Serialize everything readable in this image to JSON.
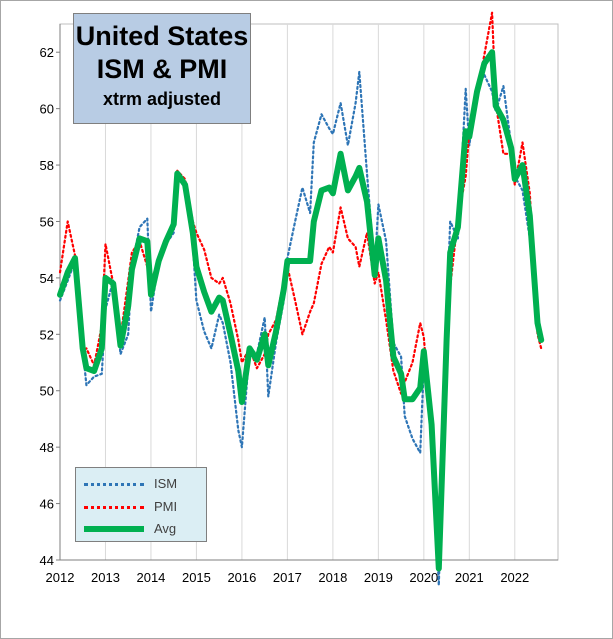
{
  "title": {
    "line1": "United States",
    "line2": "ISM & PMI",
    "subtitle": "xtrm adjusted"
  },
  "legend": {
    "ism": "ISM",
    "pmi": "PMI",
    "avg": "Avg"
  },
  "colors": {
    "ism": "#2e75b6",
    "pmi": "#ff0000",
    "avg": "#00b050"
  },
  "chart_data": {
    "type": "line",
    "title": "United States ISM & PMI xtrm adjusted",
    "xlabel": "",
    "ylabel": "",
    "xlim": [
      2012,
      2022.95
    ],
    "ylim": [
      44,
      63
    ],
    "x_ticks": [
      2012,
      2013,
      2014,
      2015,
      2016,
      2017,
      2018,
      2019,
      2020,
      2021,
      2022
    ],
    "y_ticks": [
      44,
      46,
      48,
      50,
      52,
      54,
      56,
      58,
      60,
      62
    ],
    "grid": "vertical",
    "legend_position": "bottom-left",
    "series": [
      {
        "name": "ISM",
        "style": "dotted",
        "points": [
          [
            2012.0,
            53.2
          ],
          [
            2012.17,
            53.9
          ],
          [
            2012.33,
            54.6
          ],
          [
            2012.5,
            51.5
          ],
          [
            2012.58,
            50.2
          ],
          [
            2012.75,
            50.5
          ],
          [
            2012.92,
            50.6
          ],
          [
            2013.0,
            52.9
          ],
          [
            2013.17,
            53.9
          ],
          [
            2013.33,
            51.3
          ],
          [
            2013.5,
            52.0
          ],
          [
            2013.58,
            54.4
          ],
          [
            2013.75,
            55.8
          ],
          [
            2013.92,
            56.1
          ],
          [
            2014.0,
            52.8
          ],
          [
            2014.17,
            54.6
          ],
          [
            2014.33,
            55.2
          ],
          [
            2014.5,
            55.6
          ],
          [
            2014.58,
            57.6
          ],
          [
            2014.75,
            57.4
          ],
          [
            2014.92,
            55.2
          ],
          [
            2015.0,
            53.2
          ],
          [
            2015.17,
            52.1
          ],
          [
            2015.33,
            51.5
          ],
          [
            2015.5,
            52.7
          ],
          [
            2015.58,
            52.4
          ],
          [
            2015.75,
            51.0
          ],
          [
            2015.92,
            48.6
          ],
          [
            2016.0,
            48.0
          ],
          [
            2016.17,
            51.5
          ],
          [
            2016.33,
            51.3
          ],
          [
            2016.5,
            52.6
          ],
          [
            2016.58,
            49.8
          ],
          [
            2016.75,
            51.7
          ],
          [
            2016.92,
            53.2
          ],
          [
            2017.0,
            54.7
          ],
          [
            2017.17,
            56.0
          ],
          [
            2017.33,
            57.2
          ],
          [
            2017.5,
            56.3
          ],
          [
            2017.58,
            58.8
          ],
          [
            2017.75,
            59.8
          ],
          [
            2017.92,
            59.3
          ],
          [
            2018.0,
            59.1
          ],
          [
            2018.17,
            60.2
          ],
          [
            2018.33,
            58.7
          ],
          [
            2018.5,
            60.2
          ],
          [
            2018.58,
            61.3
          ],
          [
            2018.75,
            57.7
          ],
          [
            2018.92,
            54.3
          ],
          [
            2019.0,
            56.6
          ],
          [
            2019.17,
            55.3
          ],
          [
            2019.33,
            51.7
          ],
          [
            2019.5,
            51.2
          ],
          [
            2019.58,
            49.1
          ],
          [
            2019.75,
            48.3
          ],
          [
            2019.92,
            47.8
          ],
          [
            2020.0,
            50.9
          ],
          [
            2020.17,
            49.1
          ],
          [
            2020.33,
            43.1
          ],
          [
            2020.5,
            52.6
          ],
          [
            2020.58,
            56.0
          ],
          [
            2020.75,
            55.4
          ],
          [
            2020.92,
            60.7
          ],
          [
            2021.0,
            58.7
          ],
          [
            2021.17,
            60.7
          ],
          [
            2021.33,
            61.2
          ],
          [
            2021.5,
            60.6
          ],
          [
            2021.58,
            59.9
          ],
          [
            2021.75,
            60.8
          ],
          [
            2021.92,
            58.7
          ],
          [
            2022.0,
            57.6
          ],
          [
            2022.17,
            57.1
          ],
          [
            2022.33,
            55.4
          ],
          [
            2022.5,
            52.8
          ],
          [
            2022.58,
            52.0
          ]
        ]
      },
      {
        "name": "PMI",
        "style": "dotted",
        "points": [
          [
            2012.0,
            54.2
          ],
          [
            2012.17,
            56.0
          ],
          [
            2012.33,
            54.8
          ],
          [
            2012.5,
            51.4
          ],
          [
            2012.58,
            51.5
          ],
          [
            2012.75,
            50.9
          ],
          [
            2012.92,
            52.3
          ],
          [
            2013.0,
            55.2
          ],
          [
            2013.17,
            53.8
          ],
          [
            2013.33,
            51.9
          ],
          [
            2013.5,
            53.9
          ],
          [
            2013.58,
            54.9
          ],
          [
            2013.75,
            55.3
          ],
          [
            2013.92,
            54.4
          ],
          [
            2014.0,
            53.9
          ],
          [
            2014.17,
            54.6
          ],
          [
            2014.33,
            55.3
          ],
          [
            2014.5,
            56.1
          ],
          [
            2014.58,
            57.8
          ],
          [
            2014.75,
            57.5
          ],
          [
            2014.92,
            56.0
          ],
          [
            2015.0,
            55.6
          ],
          [
            2015.17,
            55.0
          ],
          [
            2015.33,
            54.0
          ],
          [
            2015.5,
            53.8
          ],
          [
            2015.58,
            54.0
          ],
          [
            2015.75,
            53.1
          ],
          [
            2015.92,
            51.8
          ],
          [
            2016.0,
            51.0
          ],
          [
            2016.17,
            51.5
          ],
          [
            2016.33,
            50.8
          ],
          [
            2016.5,
            51.3
          ],
          [
            2016.58,
            52.0
          ],
          [
            2016.75,
            52.5
          ],
          [
            2016.92,
            53.9
          ],
          [
            2017.0,
            54.4
          ],
          [
            2017.17,
            53.2
          ],
          [
            2017.33,
            52.0
          ],
          [
            2017.5,
            52.8
          ],
          [
            2017.58,
            53.1
          ],
          [
            2017.75,
            54.5
          ],
          [
            2017.92,
            55.1
          ],
          [
            2018.0,
            54.9
          ],
          [
            2018.17,
            56.5
          ],
          [
            2018.33,
            55.4
          ],
          [
            2018.5,
            55.1
          ],
          [
            2018.58,
            54.4
          ],
          [
            2018.75,
            55.6
          ],
          [
            2018.92,
            53.8
          ],
          [
            2019.0,
            54.2
          ],
          [
            2019.17,
            52.5
          ],
          [
            2019.33,
            50.7
          ],
          [
            2019.5,
            49.9
          ],
          [
            2019.58,
            50.3
          ],
          [
            2019.75,
            51.0
          ],
          [
            2019.92,
            52.4
          ],
          [
            2020.0,
            51.9
          ],
          [
            2020.17,
            48.5
          ],
          [
            2020.33,
            44.3
          ],
          [
            2020.5,
            50.9
          ],
          [
            2020.58,
            53.7
          ],
          [
            2020.75,
            56.1
          ],
          [
            2020.92,
            57.6
          ],
          [
            2021.0,
            59.2
          ],
          [
            2021.17,
            60.5
          ],
          [
            2021.33,
            61.9
          ],
          [
            2021.5,
            63.4
          ],
          [
            2021.58,
            60.2
          ],
          [
            2021.75,
            58.4
          ],
          [
            2021.92,
            58.4
          ],
          [
            2022.0,
            57.3
          ],
          [
            2022.17,
            58.8
          ],
          [
            2022.33,
            57.0
          ],
          [
            2022.5,
            52.0
          ],
          [
            2022.58,
            51.5
          ]
        ]
      },
      {
        "name": "Avg",
        "style": "solid-thick",
        "points": [
          [
            2012.0,
            53.4
          ],
          [
            2012.17,
            54.2
          ],
          [
            2012.33,
            54.7
          ],
          [
            2012.5,
            51.5
          ],
          [
            2012.58,
            50.8
          ],
          [
            2012.75,
            50.7
          ],
          [
            2012.92,
            51.5
          ],
          [
            2013.0,
            54.0
          ],
          [
            2013.17,
            53.8
          ],
          [
            2013.33,
            51.6
          ],
          [
            2013.5,
            53.0
          ],
          [
            2013.58,
            54.3
          ],
          [
            2013.75,
            55.4
          ],
          [
            2013.92,
            55.3
          ],
          [
            2014.0,
            53.4
          ],
          [
            2014.17,
            54.6
          ],
          [
            2014.33,
            55.3
          ],
          [
            2014.5,
            55.9
          ],
          [
            2014.58,
            57.7
          ],
          [
            2014.75,
            57.3
          ],
          [
            2014.92,
            55.6
          ],
          [
            2015.0,
            54.4
          ],
          [
            2015.17,
            53.5
          ],
          [
            2015.33,
            52.8
          ],
          [
            2015.5,
            53.3
          ],
          [
            2015.58,
            53.2
          ],
          [
            2015.75,
            52.0
          ],
          [
            2015.92,
            50.7
          ],
          [
            2016.0,
            49.6
          ],
          [
            2016.17,
            51.5
          ],
          [
            2016.33,
            51.1
          ],
          [
            2016.5,
            52.0
          ],
          [
            2016.58,
            50.9
          ],
          [
            2016.75,
            52.1
          ],
          [
            2016.92,
            53.6
          ],
          [
            2017.0,
            54.6
          ],
          [
            2017.17,
            54.6
          ],
          [
            2017.33,
            54.6
          ],
          [
            2017.5,
            54.6
          ],
          [
            2017.58,
            56.0
          ],
          [
            2017.75,
            57.1
          ],
          [
            2017.92,
            57.2
          ],
          [
            2018.0,
            57.0
          ],
          [
            2018.17,
            58.4
          ],
          [
            2018.33,
            57.1
          ],
          [
            2018.5,
            57.6
          ],
          [
            2018.58,
            57.9
          ],
          [
            2018.75,
            56.7
          ],
          [
            2018.92,
            54.1
          ],
          [
            2019.0,
            55.4
          ],
          [
            2019.17,
            53.9
          ],
          [
            2019.33,
            51.2
          ],
          [
            2019.5,
            50.6
          ],
          [
            2019.58,
            49.7
          ],
          [
            2019.75,
            49.7
          ],
          [
            2019.92,
            50.1
          ],
          [
            2020.0,
            51.4
          ],
          [
            2020.17,
            48.8
          ],
          [
            2020.33,
            43.7
          ],
          [
            2020.5,
            51.8
          ],
          [
            2020.58,
            54.9
          ],
          [
            2020.75,
            55.8
          ],
          [
            2020.92,
            59.2
          ],
          [
            2021.0,
            59.0
          ],
          [
            2021.17,
            60.6
          ],
          [
            2021.33,
            61.6
          ],
          [
            2021.5,
            62.0
          ],
          [
            2021.58,
            60.1
          ],
          [
            2021.75,
            59.6
          ],
          [
            2021.92,
            58.6
          ],
          [
            2022.0,
            57.5
          ],
          [
            2022.17,
            58.0
          ],
          [
            2022.33,
            56.2
          ],
          [
            2022.5,
            52.4
          ],
          [
            2022.58,
            51.8
          ]
        ]
      }
    ]
  }
}
